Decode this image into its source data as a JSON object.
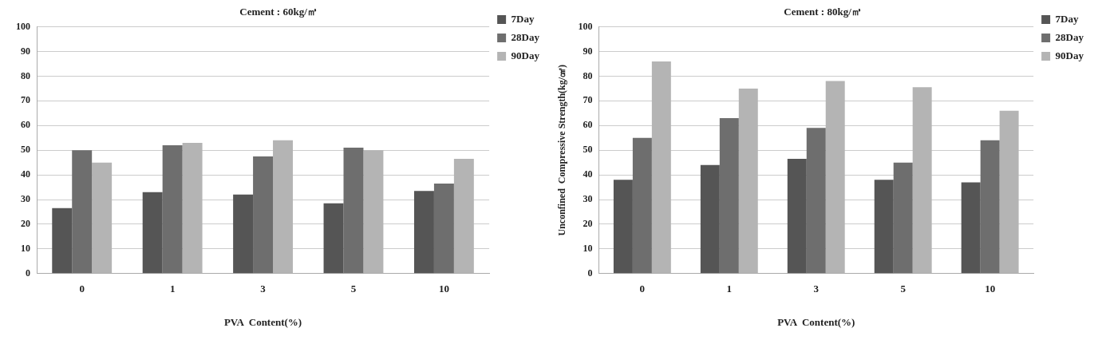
{
  "chart_data": [
    {
      "type": "bar",
      "title": "Cement : 60kg/㎥",
      "xlabel": "PVA  Content(%)",
      "categories": [
        "0",
        "1",
        "3",
        "5",
        "10"
      ],
      "series": [
        {
          "name": "7Day",
          "color": "#555555",
          "values": [
            26.5,
            33,
            32,
            28.5,
            33.5
          ]
        },
        {
          "name": "28Day",
          "color": "#6e6e6e",
          "values": [
            50,
            52,
            47.5,
            51,
            36.5
          ]
        },
        {
          "name": "90Day",
          "color": "#b4b4b4",
          "values": [
            45,
            53,
            54,
            50,
            46.5
          ]
        }
      ],
      "ylim": [
        0,
        100
      ],
      "yticks": [
        0,
        10,
        20,
        30,
        40,
        50,
        60,
        70,
        80,
        90,
        100
      ],
      "grid": "y",
      "legend": "top right"
    },
    {
      "type": "bar",
      "title": "Cement : 80kg/㎥",
      "xlabel": "PVA  Content(%)",
      "ylabel": "Unconfined  Compressive Strength(kg/㎠)",
      "categories": [
        "0",
        "1",
        "3",
        "5",
        "10"
      ],
      "series": [
        {
          "name": "7Day",
          "color": "#555555",
          "values": [
            38,
            44,
            46.5,
            38,
            37
          ]
        },
        {
          "name": "28Day",
          "color": "#6e6e6e",
          "values": [
            55,
            63,
            59,
            45,
            54
          ]
        },
        {
          "name": "90Day",
          "color": "#b4b4b4",
          "values": [
            86,
            75,
            78,
            75.5,
            66
          ]
        }
      ],
      "ylim": [
        0,
        100
      ],
      "yticks": [
        0,
        10,
        20,
        30,
        40,
        50,
        60,
        70,
        80,
        90,
        100
      ],
      "grid": "y",
      "legend": "top right"
    }
  ]
}
